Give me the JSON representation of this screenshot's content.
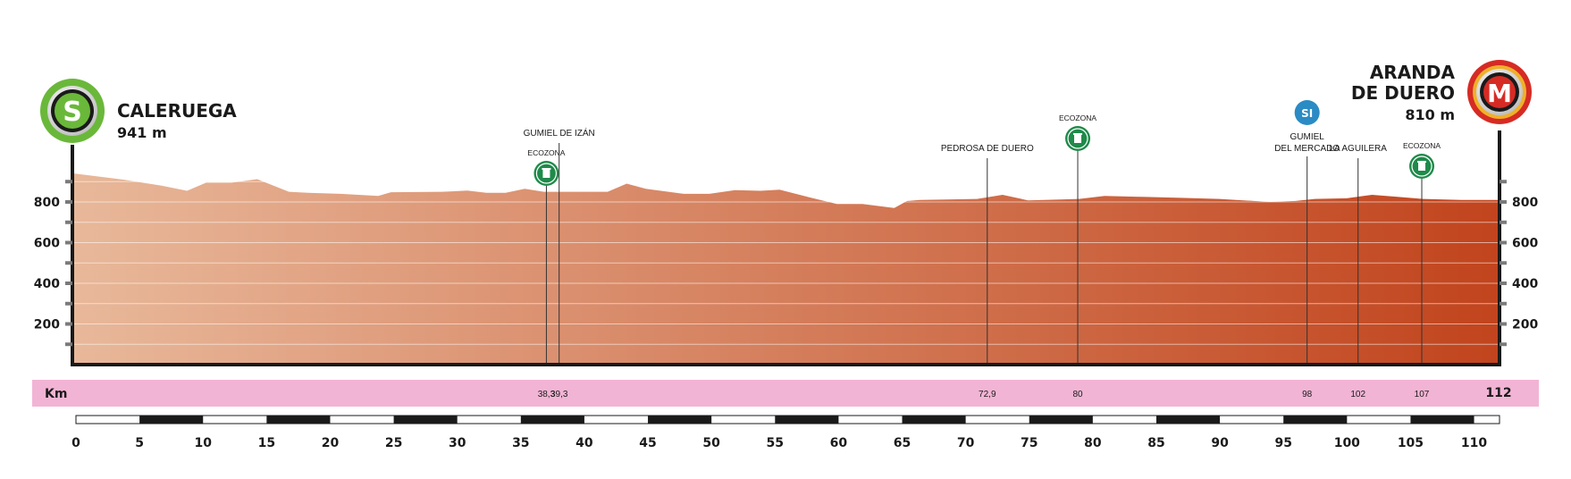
{
  "start": {
    "name": "CALERUEGA",
    "elevation": "941 m",
    "badge": "S"
  },
  "finish": {
    "name_line1": "ARANDA",
    "name_line2": "DE DUERO",
    "elevation": "810 m",
    "badge": "M"
  },
  "colors": {
    "profile_start": "#e8b89a",
    "profile_end": "#c1441d",
    "km_band": "#f2b4d4",
    "start_badge": "#6ab83a",
    "finish_badge": "#d62b24",
    "ecozona": "#1f8a4a",
    "sprint": "#2b8bc4"
  },
  "chart_data": {
    "type": "area",
    "title": "",
    "xlabel": "Km",
    "ylabel": "",
    "xlim": [
      0,
      112
    ],
    "ylim": [
      0,
      1000
    ],
    "y_ticks": [
      200,
      400,
      600,
      800
    ],
    "x_ticks": [
      0,
      5,
      10,
      15,
      20,
      25,
      30,
      35,
      40,
      45,
      50,
      55,
      60,
      65,
      70,
      75,
      80,
      85,
      90,
      95,
      100,
      105,
      110
    ],
    "x": [
      0,
      4,
      7,
      9,
      10.5,
      12.5,
      14.5,
      17,
      18.5,
      21,
      24,
      25,
      29,
      31,
      32.5,
      34,
      35.5,
      37,
      40,
      42,
      43.5,
      45,
      48,
      50,
      52,
      54,
      55.5,
      58,
      60,
      62,
      64.5,
      65.5,
      66.5,
      71,
      73,
      75,
      79,
      81,
      84,
      87,
      90,
      94,
      96,
      97.5,
      100,
      102,
      104,
      106,
      109,
      112
    ],
    "y": [
      941,
      910,
      880,
      855,
      895,
      895,
      912,
      850,
      845,
      840,
      830,
      848,
      850,
      856,
      845,
      845,
      865,
      850,
      850,
      850,
      890,
      865,
      840,
      840,
      858,
      855,
      860,
      820,
      790,
      790,
      770,
      805,
      810,
      815,
      835,
      808,
      815,
      830,
      825,
      820,
      815,
      800,
      805,
      815,
      818,
      835,
      825,
      815,
      810,
      810
    ],
    "landmarks": [
      {
        "km": "38,3",
        "name": "ECOZONA",
        "kind": "ecozona"
      },
      {
        "km": "39,3",
        "name": "GUMIEL DE IZÁN",
        "kind": "town"
      },
      {
        "km": "72,9",
        "name": "PEDROSA DE DUERO",
        "kind": "town"
      },
      {
        "km": "80",
        "name": "ECOZONA",
        "kind": "ecozona"
      },
      {
        "km": "98",
        "name_line1": "GUMIEL",
        "name_line2": "DEL MERCADO",
        "kind": "sprint",
        "badge": "SI"
      },
      {
        "km": "102",
        "name": "LA AGUILERA",
        "kind": "town"
      },
      {
        "km": "107",
        "name": "ECOZONA",
        "kind": "ecozona"
      }
    ],
    "total_km": "112",
    "km_label": "Km"
  }
}
